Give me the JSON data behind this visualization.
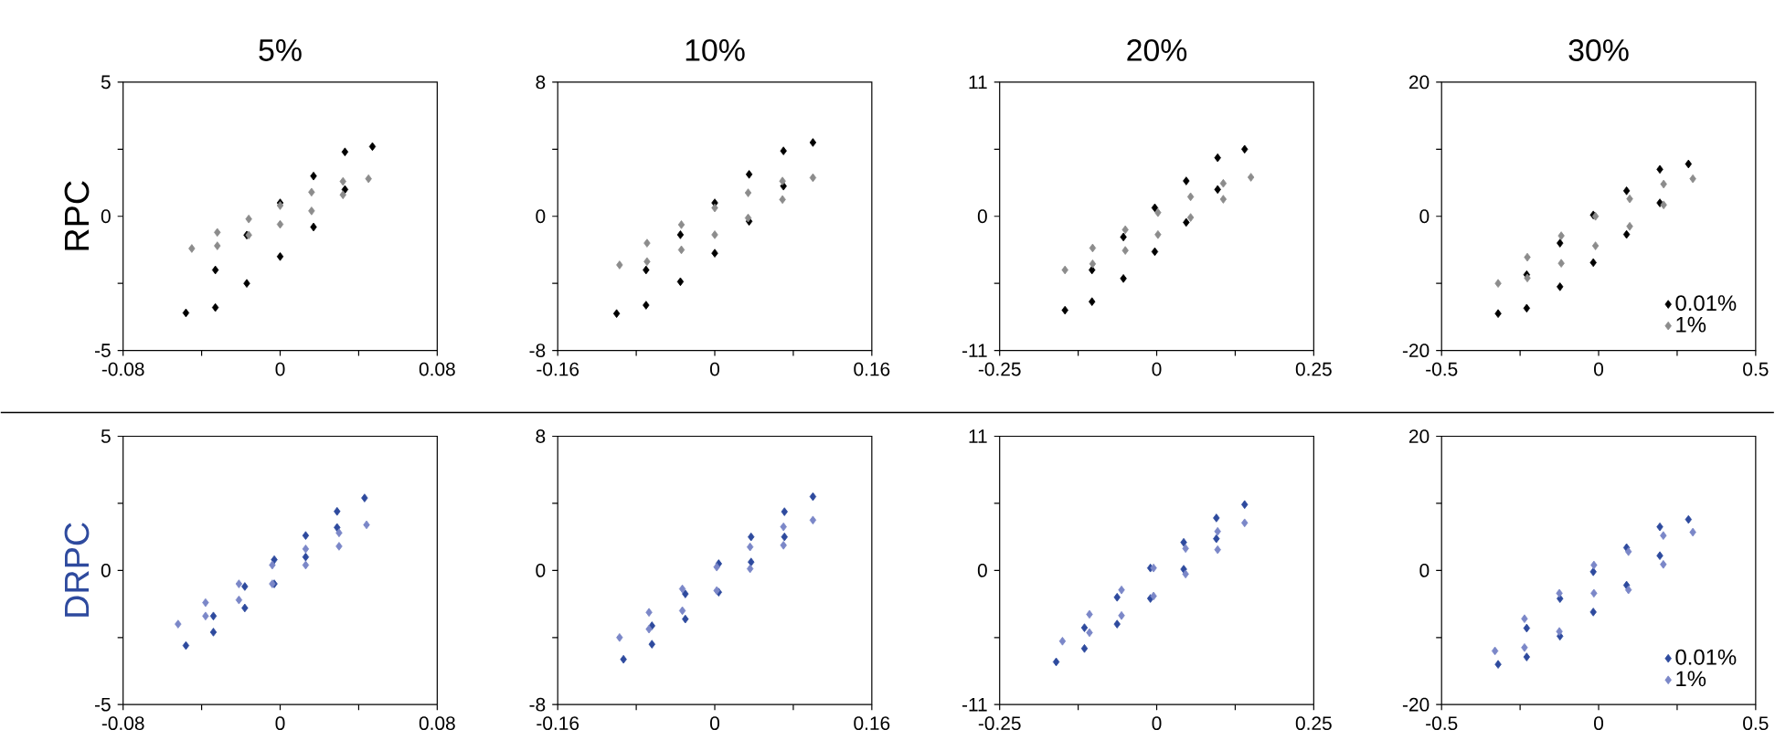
{
  "chart_data": [
    {
      "type": "scatter",
      "title": "5%",
      "ylabel": "RPC",
      "marker": "diamond",
      "xlim": [
        -0.08,
        0.08
      ],
      "ylim": [
        -5,
        5
      ],
      "xticks": [
        -0.08,
        {
          "value": -0.04,
          "label": null
        },
        0,
        {
          "value": 0.04,
          "label": null
        },
        0.08
      ],
      "yticks": [
        -5,
        {
          "value": -2.5,
          "label": null
        },
        0,
        {
          "value": 2.5,
          "label": null
        },
        5
      ],
      "series": [
        {
          "color": "#000000",
          "x": [
            -0.048,
            -0.033,
            -0.017,
            0,
            0.017,
            0.033,
            0.047,
            0.033,
            0.017,
            0,
            -0.017,
            -0.033
          ],
          "values": [
            -3.6,
            -2.0,
            -0.7,
            0.5,
            1.5,
            2.4,
            2.6,
            1.0,
            -0.4,
            -1.5,
            -2.5,
            -3.4
          ]
        },
        {
          "color": "#8c8c8c",
          "x": [
            -0.045,
            -0.032,
            -0.016,
            0,
            0.016,
            0.032,
            0.045,
            0.032,
            0.016,
            0,
            -0.016,
            -0.032
          ],
          "values": [
            -1.2,
            -0.6,
            -0.1,
            0.4,
            0.9,
            1.3,
            1.4,
            0.8,
            0.2,
            -0.3,
            -0.7,
            -1.1
          ]
        }
      ]
    },
    {
      "type": "scatter",
      "title": "10%",
      "marker": "diamond",
      "xlim": [
        -0.16,
        0.16
      ],
      "ylim": [
        -8,
        8
      ],
      "xticks": [
        -0.16,
        {
          "value": -0.08,
          "label": null
        },
        0,
        {
          "value": 0.08,
          "label": null
        },
        0.16
      ],
      "yticks": [
        -8,
        {
          "value": -4,
          "label": null
        },
        0,
        {
          "value": 4,
          "label": null
        },
        8
      ],
      "series": [
        {
          "color": "#000000",
          "x": [
            -0.1,
            -0.07,
            -0.035,
            0,
            0.035,
            0.07,
            0.1,
            0.07,
            0.035,
            0,
            -0.035,
            -0.07
          ],
          "values": [
            -5.8,
            -3.2,
            -1.1,
            0.8,
            2.5,
            3.9,
            4.4,
            1.8,
            -0.3,
            -2.2,
            -3.9,
            -5.3
          ]
        },
        {
          "color": "#8c8c8c",
          "x": [
            -0.097,
            -0.069,
            -0.034,
            0,
            0.034,
            0.069,
            0.1,
            0.069,
            0.034,
            0,
            -0.034,
            -0.069
          ],
          "values": [
            -2.9,
            -1.6,
            -0.5,
            0.5,
            1.4,
            2.1,
            2.3,
            1.0,
            -0.1,
            -1.1,
            -2.0,
            -2.7
          ]
        }
      ]
    },
    {
      "type": "scatter",
      "title": "20%",
      "marker": "diamond",
      "xlim": [
        -0.25,
        0.25
      ],
      "ylim": [
        -11,
        11
      ],
      "xticks": [
        -0.25,
        {
          "value": -0.125,
          "label": null
        },
        0,
        {
          "value": 0.125,
          "label": null
        },
        0.25
      ],
      "yticks": [
        -11,
        {
          "value": -5.5,
          "label": null
        },
        0,
        {
          "value": 5.5,
          "label": null
        },
        11
      ],
      "series": [
        {
          "color": "#000000",
          "x": [
            -0.146,
            -0.103,
            -0.053,
            -0.003,
            0.047,
            0.097,
            0.14,
            0.097,
            0.047,
            -0.003,
            -0.053,
            -0.103
          ],
          "values": [
            -7.7,
            -4.4,
            -1.7,
            0.7,
            2.9,
            4.8,
            5.5,
            2.2,
            -0.5,
            -2.9,
            -5.1,
            -7.0
          ]
        },
        {
          "color": "#8c8c8c",
          "x": [
            -0.146,
            -0.102,
            -0.05,
            0.002,
            0.054,
            0.106,
            0.15,
            0.106,
            0.054,
            0.002,
            -0.05,
            -0.102
          ],
          "values": [
            -4.4,
            -2.6,
            -1.1,
            0.3,
            1.6,
            2.7,
            3.2,
            1.4,
            -0.1,
            -1.5,
            -2.8,
            -3.9
          ]
        }
      ]
    },
    {
      "type": "scatter",
      "title": "30%",
      "marker": "diamond",
      "legend": "bottom right",
      "xlim": [
        -0.5,
        0.5
      ],
      "ylim": [
        -20,
        20
      ],
      "xticks": [
        -0.5,
        {
          "value": -0.25,
          "label": null
        },
        0,
        {
          "value": 0.25,
          "label": null
        },
        0.5
      ],
      "yticks": [
        -20,
        {
          "value": -10,
          "label": null
        },
        0,
        {
          "value": 10,
          "label": null
        },
        20
      ],
      "series": [
        {
          "name": "0.01%",
          "color": "#000000",
          "x": [
            -0.32,
            -0.229,
            -0.123,
            -0.017,
            0.089,
            0.195,
            0.286,
            0.195,
            0.089,
            -0.017,
            -0.123,
            -0.229
          ],
          "values": [
            -14.5,
            -8.7,
            -4.0,
            0.2,
            3.8,
            7.0,
            7.8,
            2.0,
            -2.7,
            -6.9,
            -10.5,
            -13.7
          ]
        },
        {
          "name": "1%",
          "color": "#8c8c8c",
          "x": [
            -0.32,
            -0.227,
            -0.119,
            -0.01,
            0.099,
            0.207,
            0.3,
            0.207,
            0.099,
            -0.01,
            -0.119,
            -0.227
          ],
          "values": [
            -10,
            -6.1,
            -2.9,
            0,
            2.6,
            4.8,
            5.6,
            1.7,
            -1.5,
            -4.4,
            -7.0,
            -9.2
          ]
        }
      ]
    },
    {
      "type": "scatter",
      "ylabel": "DRPC",
      "marker": "diamond",
      "xlim": [
        -0.08,
        0.08
      ],
      "ylim": [
        -5,
        5
      ],
      "xticks": [
        -0.08,
        {
          "value": -0.04,
          "label": null
        },
        0,
        {
          "value": 0.04,
          "label": null
        },
        0.08
      ],
      "yticks": [
        -5,
        {
          "value": -2.5,
          "label": null
        },
        0,
        {
          "value": 2.5,
          "label": null
        },
        5
      ],
      "series": [
        {
          "color": "#2e4a9e",
          "x": [
            -0.048,
            -0.034,
            -0.018,
            -0.003,
            0.013,
            0.029,
            0.043,
            0.029,
            0.013,
            -0.003,
            -0.018,
            -0.034
          ],
          "values": [
            -2.8,
            -1.7,
            -0.6,
            0.4,
            1.3,
            2.2,
            2.7,
            1.6,
            0.5,
            -0.5,
            -1.4,
            -2.3
          ]
        },
        {
          "color": "#7b87c8",
          "x": [
            -0.052,
            -0.038,
            -0.021,
            -0.004,
            0.013,
            0.03,
            0.044,
            0.03,
            0.013,
            -0.004,
            -0.021,
            -0.038
          ],
          "values": [
            -2.0,
            -1.2,
            -0.5,
            0.2,
            0.8,
            1.4,
            1.7,
            0.9,
            0.2,
            -0.5,
            -1.1,
            -1.7
          ]
        }
      ]
    },
    {
      "type": "scatter",
      "marker": "diamond",
      "xlim": [
        -0.16,
        0.16
      ],
      "ylim": [
        -8,
        8
      ],
      "xticks": [
        -0.16,
        {
          "value": -0.08,
          "label": null
        },
        0,
        {
          "value": 0.08,
          "label": null
        },
        0.16
      ],
      "yticks": [
        -8,
        {
          "value": -4,
          "label": null
        },
        0,
        {
          "value": 4,
          "label": null
        },
        8
      ],
      "series": [
        {
          "color": "#2e4a9e",
          "x": [
            -0.093,
            -0.064,
            -0.03,
            0.004,
            0.037,
            0.071,
            0.1,
            0.071,
            0.037,
            0.004,
            -0.03,
            -0.064
          ],
          "values": [
            -5.3,
            -3.3,
            -1.4,
            0.4,
            2.0,
            3.5,
            4.4,
            2.0,
            0.5,
            -1.3,
            -2.9,
            -4.4
          ]
        },
        {
          "color": "#7b87c8",
          "x": [
            -0.097,
            -0.067,
            -0.033,
            0.002,
            0.036,
            0.07,
            0.1,
            0.07,
            0.036,
            0.002,
            -0.033,
            -0.067
          ],
          "values": [
            -4.0,
            -2.5,
            -1.1,
            0.2,
            1.4,
            2.6,
            3.0,
            1.5,
            0.1,
            -1.2,
            -2.4,
            -3.5
          ]
        }
      ]
    },
    {
      "type": "scatter",
      "marker": "diamond",
      "xlim": [
        -0.25,
        0.25
      ],
      "ylim": [
        -11,
        11
      ],
      "xticks": [
        -0.25,
        {
          "value": -0.125,
          "label": null
        },
        0,
        {
          "value": 0.125,
          "label": null
        },
        0.25
      ],
      "yticks": [
        -11,
        {
          "value": -5.5,
          "label": null
        },
        0,
        {
          "value": 5.5,
          "label": null
        },
        11
      ],
      "series": [
        {
          "color": "#2e4a9e",
          "x": [
            -0.16,
            -0.115,
            -0.063,
            -0.01,
            0.043,
            0.095,
            0.14,
            0.095,
            0.043,
            -0.01,
            -0.063,
            -0.115
          ],
          "values": [
            -7.5,
            -4.7,
            -2.2,
            0.2,
            2.3,
            4.3,
            5.4,
            2.6,
            0.1,
            -2.3,
            -4.4,
            -6.4
          ]
        },
        {
          "color": "#7b87c8",
          "x": [
            -0.15,
            -0.107,
            -0.056,
            -0.005,
            0.046,
            0.097,
            0.14,
            0.097,
            0.046,
            -0.005,
            -0.056,
            -0.107
          ],
          "values": [
            -5.8,
            -3.6,
            -1.6,
            0.2,
            1.8,
            3.2,
            3.9,
            1.7,
            -0.3,
            -2.1,
            -3.7,
            -5.1
          ]
        }
      ]
    },
    {
      "type": "scatter",
      "marker": "diamond",
      "legend": "bottom right",
      "xlim": [
        -0.5,
        0.5
      ],
      "ylim": [
        -20,
        20
      ],
      "xticks": [
        -0.5,
        {
          "value": -0.25,
          "label": null
        },
        0,
        {
          "value": 0.25,
          "label": null
        },
        0.5
      ],
      "yticks": [
        -20,
        {
          "value": -10,
          "label": null
        },
        0,
        {
          "value": 10,
          "label": null
        },
        20
      ],
      "series": [
        {
          "name": "0.01%",
          "color": "#2e4a9e",
          "x": [
            -0.32,
            -0.229,
            -0.123,
            -0.017,
            0.089,
            0.195,
            0.286,
            0.195,
            0.089,
            -0.017,
            -0.123,
            -0.229
          ],
          "values": [
            -14,
            -8.6,
            -4.2,
            -0.2,
            3.4,
            6.5,
            7.6,
            2.2,
            -2.2,
            -6.2,
            -9.8,
            -12.9
          ]
        },
        {
          "name": "1%",
          "color": "#7b87c8",
          "x": [
            -0.33,
            -0.236,
            -0.125,
            -0.015,
            0.095,
            0.206,
            0.3,
            0.206,
            0.095,
            -0.015,
            -0.125,
            -0.236
          ],
          "values": [
            -12,
            -7.2,
            -3.4,
            0.8,
            2.8,
            5.2,
            5.7,
            0.9,
            -2.9,
            -3.4,
            -9.1,
            -11.5
          ]
        }
      ]
    }
  ]
}
